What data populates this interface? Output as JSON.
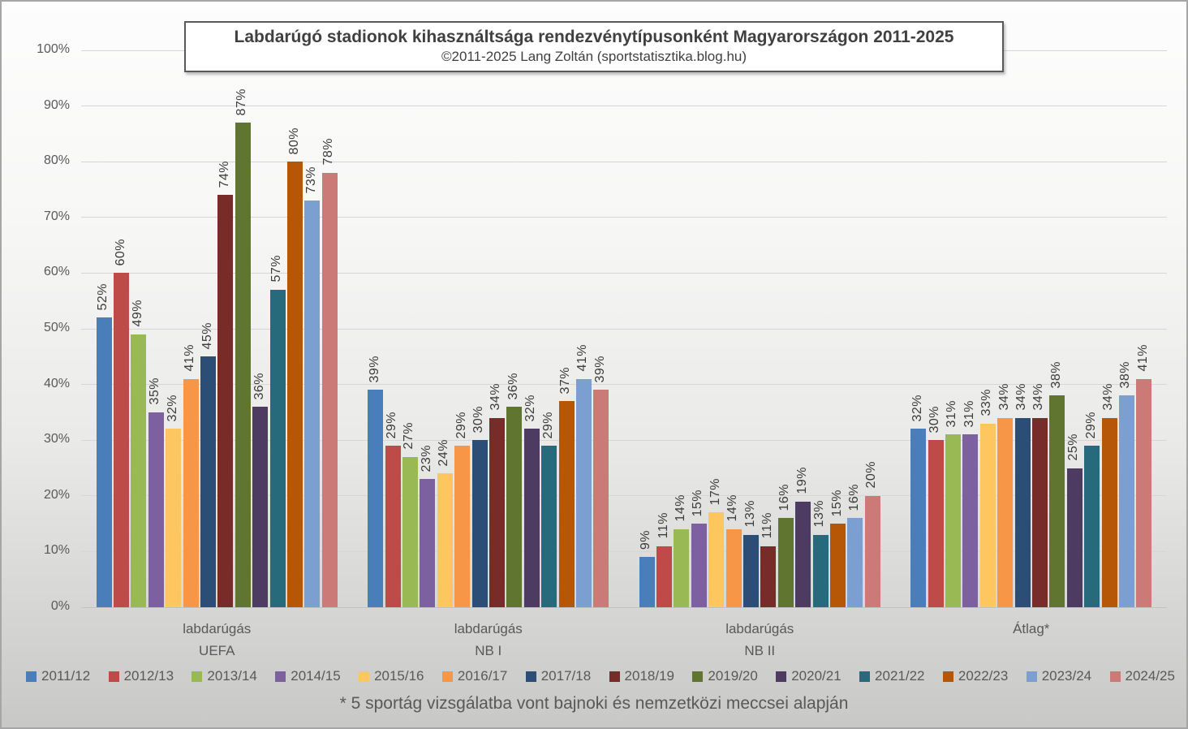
{
  "chart_data": {
    "type": "bar",
    "title": "Labdarúgó stadionok kihasználtsága rendezvénytípusonként Magyarországon 2011-2025",
    "subtitle": "©2011-2025 Lang Zoltán (sportstatisztika.blog.hu)",
    "footnote": "* 5 sportág vizsgálatba vont bajnoki és nemzetközi meccsei alapján",
    "categories": [
      [
        "labdarúgás",
        "UEFA"
      ],
      [
        "labdarúgás",
        "NB I"
      ],
      [
        "labdarúgás",
        "NB II"
      ],
      [
        "Átlag*"
      ]
    ],
    "value_suffix": "%",
    "ylim": [
      0,
      100
    ],
    "y_ticks": [
      "0%",
      "10%",
      "20%",
      "30%",
      "40%",
      "50%",
      "60%",
      "70%",
      "80%",
      "90%",
      "100%"
    ],
    "grid": true,
    "legend_position": "bottom",
    "series": [
      {
        "name": "2011/12",
        "color": "#4a7ebb",
        "values": [
          52,
          39,
          9,
          32
        ]
      },
      {
        "name": "2012/13",
        "color": "#be4b48",
        "values": [
          60,
          29,
          11,
          30
        ]
      },
      {
        "name": "2013/14",
        "color": "#98b954",
        "values": [
          49,
          27,
          14,
          31
        ]
      },
      {
        "name": "2014/15",
        "color": "#7d60a0",
        "values": [
          35,
          23,
          15,
          31
        ]
      },
      {
        "name": "2015/16",
        "color": "#fdc65f",
        "values": [
          32,
          24,
          17,
          33
        ]
      },
      {
        "name": "2016/17",
        "color": "#f79646",
        "values": [
          41,
          29,
          14,
          34
        ]
      },
      {
        "name": "2017/18",
        "color": "#2c4d75",
        "values": [
          45,
          30,
          13,
          34
        ]
      },
      {
        "name": "2018/19",
        "color": "#772c2a",
        "values": [
          74,
          34,
          11,
          34
        ]
      },
      {
        "name": "2019/20",
        "color": "#5f7530",
        "values": [
          87,
          36,
          16,
          38
        ]
      },
      {
        "name": "2020/21",
        "color": "#4d3b62",
        "values": [
          36,
          32,
          19,
          25
        ]
      },
      {
        "name": "2021/22",
        "color": "#276a7c",
        "values": [
          57,
          29,
          13,
          29
        ]
      },
      {
        "name": "2022/23",
        "color": "#b65708",
        "values": [
          80,
          37,
          15,
          34
        ]
      },
      {
        "name": "2023/24",
        "color": "#7b9fd1",
        "values": [
          73,
          41,
          16,
          38
        ]
      },
      {
        "name": "2024/25",
        "color": "#cc7a77",
        "values": [
          78,
          39,
          20,
          41
        ]
      }
    ]
  }
}
